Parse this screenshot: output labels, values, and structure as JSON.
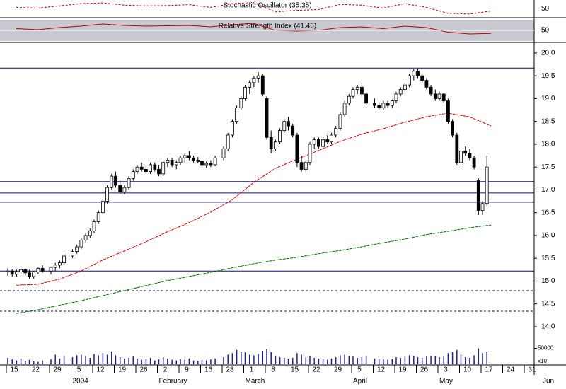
{
  "chart_data": {
    "type": "candlestick",
    "stochastic": {
      "title": "Stochastic Oscillator (35.35)",
      "color": "#c00000",
      "ylim": [
        0,
        100
      ],
      "yticks": [
        50
      ],
      "values": [
        60,
        55,
        70,
        85,
        90,
        75,
        70,
        72,
        78,
        60,
        85,
        92,
        30,
        40,
        45,
        80,
        75,
        55,
        85,
        60,
        20,
        15,
        35.35,
        null,
        null
      ]
    },
    "rsi": {
      "title": "Relative Strength Index (41.46)",
      "color": "#c00000",
      "ylim": [
        20,
        80
      ],
      "yticks": [
        50
      ],
      "values": [
        55,
        52,
        58,
        62,
        68,
        64,
        62,
        63,
        64,
        60,
        66,
        70,
        50,
        48,
        50,
        58,
        60,
        55,
        62,
        58,
        45,
        40,
        41.46,
        null,
        null
      ]
    },
    "categories": [
      "15",
      "22",
      "29",
      "5",
      "12",
      "19",
      "26",
      "2",
      "9",
      "16",
      "23",
      "1",
      "8",
      "15",
      "22",
      "29",
      "5",
      "12",
      "19",
      "26",
      "3",
      "10",
      "17",
      "24",
      "31"
    ],
    "months": [
      null,
      null,
      null,
      "2004",
      null,
      null,
      null,
      "February",
      null,
      null,
      null,
      "March",
      null,
      null,
      null,
      null,
      "April",
      null,
      null,
      null,
      "May",
      null,
      null,
      null,
      null
    ],
    "end_month": "Jun",
    "ylim": [
      13.72,
      20.2
    ],
    "yticks": [
      {
        "value": 14,
        "label": "14.0"
      },
      {
        "value": 14.5,
        "label": "14.5"
      },
      {
        "value": 15,
        "label": "15.0"
      },
      {
        "value": 15.5,
        "label": "15.5"
      },
      {
        "value": 16,
        "label": "16.0"
      },
      {
        "value": 16.5,
        "label": "16.5"
      },
      {
        "value": 17,
        "label": "17.0"
      },
      {
        "value": 17.5,
        "label": "17.5"
      },
      {
        "value": 18,
        "label": "18.0"
      },
      {
        "value": 18.5,
        "label": "18.5"
      },
      {
        "value": 19,
        "label": "19.0"
      },
      {
        "value": 19.5,
        "label": "19.5"
      },
      {
        "value": 20,
        "label": "20.0"
      }
    ],
    "levels": [
      19.67,
      17.18,
      16.93,
      16.73,
      15.22
    ],
    "dashed_levels": [
      14.79,
      14.34
    ],
    "level_color": "#101070",
    "volume_color": "#20208a",
    "volume_ylim": [
      0,
      100000
    ],
    "volume_ticks": [
      50000
    ],
    "volume_unit": "x10",
    "series": [
      {
        "color": "#d00000",
        "values": [
          14.91,
          14.93,
          15.04,
          15.22,
          15.46,
          15.66,
          15.86,
          16.08,
          16.28,
          16.51,
          16.78,
          17.16,
          17.47,
          17.67,
          17.86,
          18.06,
          18.22,
          18.34,
          18.48,
          18.6,
          18.68,
          18.6,
          18.4,
          null,
          null
        ]
      },
      {
        "color": "#007000",
        "values": [
          14.29,
          14.37,
          14.47,
          14.57,
          14.68,
          14.79,
          14.9,
          15.01,
          15.1,
          15.19,
          15.29,
          15.38,
          15.46,
          15.52,
          15.6,
          15.67,
          15.75,
          15.84,
          15.92,
          16.02,
          16.09,
          16.17,
          16.23,
          null,
          null
        ]
      }
    ],
    "candles": [
      [
        [
          15.2,
          15.28,
          15.12,
          15.22,
          20000
        ],
        [
          15.22,
          15.26,
          15.1,
          15.15,
          15000
        ],
        [
          15.15,
          15.25,
          15.1,
          15.2,
          12000
        ],
        [
          15.2,
          15.3,
          15.15,
          15.25,
          18000
        ],
        [
          15.25,
          15.28,
          15.12,
          15.18,
          10000
        ]
      ],
      [
        [
          15.18,
          15.25,
          15.05,
          15.1,
          14000
        ],
        [
          15.1,
          15.22,
          15.05,
          15.2,
          9000
        ],
        [
          15.2,
          15.3,
          15.15,
          15.28,
          8000
        ],
        [
          15.28,
          15.35,
          15.18,
          15.22,
          12000
        ]
      ],
      [
        [
          15.22,
          15.32,
          15.15,
          15.3,
          16000
        ],
        [
          15.3,
          15.4,
          15.22,
          15.35,
          30000
        ],
        [
          15.35,
          15.45,
          15.28,
          15.4,
          18000
        ],
        [
          15.4,
          15.6,
          15.35,
          15.55,
          25000
        ]
      ],
      [
        [
          15.55,
          15.7,
          15.5,
          15.65,
          22000
        ],
        [
          15.65,
          15.8,
          15.6,
          15.75,
          28000
        ],
        [
          15.75,
          15.95,
          15.7,
          15.9,
          30000
        ],
        [
          15.9,
          16.05,
          15.85,
          16.0,
          26000
        ],
        [
          16.0,
          16.15,
          15.95,
          16.1,
          20000
        ]
      ],
      [
        [
          16.1,
          16.35,
          16.05,
          16.3,
          32000
        ],
        [
          16.3,
          16.55,
          16.25,
          16.5,
          28000
        ],
        [
          16.5,
          16.8,
          16.45,
          16.75,
          35000
        ],
        [
          16.75,
          17.1,
          16.7,
          17.05,
          30000
        ],
        [
          17.05,
          17.35,
          17.0,
          17.3,
          40000
        ]
      ],
      [
        [
          17.3,
          17.4,
          17.05,
          17.1,
          28000
        ],
        [
          17.1,
          17.2,
          16.9,
          16.95,
          22000
        ],
        [
          16.95,
          17.1,
          16.9,
          17.05,
          18000
        ],
        [
          17.05,
          17.3,
          17.0,
          17.25,
          20000
        ],
        [
          17.25,
          17.45,
          17.2,
          17.4,
          24000
        ]
      ],
      [
        [
          17.4,
          17.55,
          17.35,
          17.5,
          18000
        ],
        [
          17.5,
          17.6,
          17.4,
          17.45,
          14000
        ],
        [
          17.45,
          17.55,
          17.35,
          17.4,
          16000
        ],
        [
          17.4,
          17.6,
          17.35,
          17.55,
          20000
        ],
        [
          17.55,
          17.6,
          17.4,
          17.45,
          12000
        ]
      ],
      [
        [
          17.45,
          17.55,
          17.3,
          17.35,
          15000
        ],
        [
          17.35,
          17.65,
          17.3,
          17.6,
          22000
        ],
        [
          17.6,
          17.7,
          17.5,
          17.65,
          18000
        ],
        [
          17.65,
          17.7,
          17.5,
          17.55,
          14000
        ],
        [
          17.55,
          17.65,
          17.45,
          17.6,
          12000
        ]
      ],
      [
        [
          17.6,
          17.75,
          17.55,
          17.7,
          16000
        ],
        [
          17.7,
          17.8,
          17.6,
          17.75,
          14000
        ],
        [
          17.75,
          17.85,
          17.65,
          17.7,
          18000
        ],
        [
          17.7,
          17.75,
          17.6,
          17.65,
          12000
        ],
        [
          17.65,
          17.72,
          17.58,
          17.62,
          10000
        ]
      ],
      [
        [
          17.62,
          17.68,
          17.52,
          17.55,
          14000
        ],
        [
          17.55,
          17.62,
          17.48,
          17.58,
          12000
        ],
        [
          17.58,
          17.65,
          17.5,
          17.55,
          15000
        ],
        [
          17.55,
          17.75,
          17.52,
          17.7,
          18000
        ]
      ],
      [
        [
          17.7,
          17.95,
          17.65,
          17.9,
          22000
        ],
        [
          17.9,
          18.25,
          17.85,
          18.2,
          30000
        ],
        [
          18.2,
          18.55,
          18.15,
          18.5,
          35000
        ],
        [
          18.5,
          18.85,
          18.45,
          18.8,
          45000
        ],
        [
          18.8,
          19.05,
          18.75,
          19.0,
          40000
        ]
      ],
      [
        [
          19.0,
          19.3,
          18.95,
          19.25,
          38000
        ],
        [
          19.25,
          19.4,
          19.1,
          19.35,
          30000
        ],
        [
          19.35,
          19.5,
          19.25,
          19.45,
          28000
        ],
        [
          19.45,
          19.58,
          19.35,
          19.5,
          32000
        ],
        [
          19.5,
          19.55,
          19.05,
          19.1,
          42000
        ]
      ],
      [
        [
          19.0,
          19.05,
          18.1,
          18.15,
          48000
        ],
        [
          18.15,
          18.3,
          17.8,
          17.9,
          38000
        ],
        [
          17.9,
          18.1,
          17.85,
          18.05,
          25000
        ],
        [
          18.05,
          18.35,
          18.0,
          18.3,
          22000
        ],
        [
          18.3,
          18.55,
          18.25,
          18.5,
          20000
        ]
      ],
      [
        [
          18.5,
          18.6,
          18.3,
          18.4,
          18000
        ],
        [
          18.4,
          18.45,
          18.15,
          18.2,
          20000
        ],
        [
          18.2,
          18.25,
          17.5,
          17.6,
          35000
        ],
        [
          17.6,
          17.75,
          17.4,
          17.45,
          30000
        ],
        [
          17.45,
          17.65,
          17.4,
          17.6,
          22000
        ]
      ],
      [
        [
          17.6,
          18.05,
          17.55,
          18.0,
          25000
        ],
        [
          18.0,
          18.15,
          17.9,
          18.1,
          20000
        ],
        [
          18.1,
          18.15,
          17.9,
          17.95,
          18000
        ],
        [
          17.95,
          18.15,
          17.9,
          18.1,
          16000
        ],
        [
          18.1,
          18.2,
          18.0,
          18.05,
          14000
        ]
      ],
      [
        [
          18.05,
          18.25,
          18.0,
          18.2,
          18000
        ],
        [
          18.2,
          18.4,
          18.15,
          18.35,
          22000
        ],
        [
          18.35,
          18.7,
          18.3,
          18.65,
          28000
        ],
        [
          18.65,
          18.95,
          18.6,
          18.9,
          30000
        ],
        [
          18.9,
          19.1,
          18.85,
          19.05,
          26000
        ]
      ],
      [
        [
          19.05,
          19.25,
          19.0,
          19.2,
          24000
        ],
        [
          19.2,
          19.3,
          19.1,
          19.25,
          20000
        ],
        [
          19.25,
          19.35,
          19.05,
          19.1,
          22000
        ],
        [
          19.1,
          19.15,
          18.85,
          18.9,
          25000
        ]
      ],
      [
        [
          18.9,
          19.0,
          18.8,
          18.85,
          18000
        ],
        [
          18.85,
          18.92,
          18.75,
          18.8,
          16000
        ],
        [
          18.8,
          18.95,
          18.75,
          18.9,
          15000
        ],
        [
          18.9,
          18.95,
          18.8,
          18.85,
          14000
        ],
        [
          18.85,
          18.98,
          18.8,
          18.95,
          16000
        ]
      ],
      [
        [
          18.95,
          19.15,
          18.9,
          19.1,
          22000
        ],
        [
          19.1,
          19.25,
          19.05,
          19.2,
          20000
        ],
        [
          19.2,
          19.35,
          19.15,
          19.3,
          24000
        ],
        [
          19.3,
          19.55,
          19.25,
          19.5,
          28000
        ],
        [
          19.5,
          19.65,
          19.4,
          19.6,
          26000
        ]
      ],
      [
        [
          19.6,
          19.65,
          19.45,
          19.5,
          22000
        ],
        [
          19.5,
          19.55,
          19.35,
          19.4,
          20000
        ],
        [
          19.4,
          19.45,
          19.2,
          19.25,
          24000
        ],
        [
          19.25,
          19.3,
          19.05,
          19.1,
          26000
        ],
        [
          19.1,
          19.2,
          18.95,
          19.0,
          25000
        ]
      ],
      [
        [
          19.0,
          19.15,
          18.95,
          19.1,
          22000
        ],
        [
          19.1,
          19.12,
          18.9,
          18.95,
          24000
        ],
        [
          18.95,
          19.0,
          18.45,
          18.5,
          35000
        ],
        [
          18.5,
          18.55,
          18.15,
          18.2,
          38000
        ],
        [
          18.2,
          18.25,
          17.55,
          17.6,
          45000
        ]
      ],
      [
        [
          17.6,
          17.9,
          17.55,
          17.85,
          30000
        ],
        [
          17.85,
          17.95,
          17.75,
          17.8,
          22000
        ],
        [
          17.8,
          17.9,
          17.65,
          17.7,
          20000
        ],
        [
          17.7,
          17.75,
          17.45,
          17.5,
          28000
        ],
        [
          17.2,
          17.25,
          16.45,
          16.55,
          50000
        ]
      ],
      [
        [
          16.55,
          16.75,
          16.45,
          16.7,
          35000
        ],
        [
          16.7,
          17.75,
          16.65,
          17.5,
          40000
        ]
      ],
      null,
      null
    ]
  }
}
